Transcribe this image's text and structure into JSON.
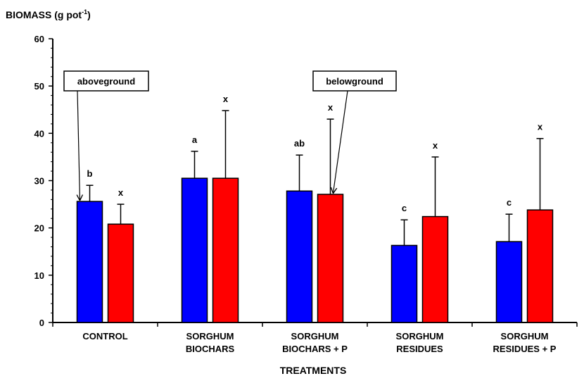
{
  "chart_data": {
    "type": "bar",
    "ylabel": "BIOMASS (g pot",
    "ylabel_sup": "-1",
    "ylabel_end": ")",
    "xlabel": "TREATMENTS",
    "ylim": [
      0,
      60
    ],
    "yticks": [
      0,
      10,
      20,
      30,
      40,
      50,
      60
    ],
    "grid": false,
    "categories": [
      [
        "CONTROL"
      ],
      [
        "SORGHUM",
        "BIOCHARS"
      ],
      [
        "SORGHUM",
        "BIOCHARS + P"
      ],
      [
        "SORGHUM",
        "RESIDUES"
      ],
      [
        "SORGHUM",
        "RESIDUES + P"
      ]
    ],
    "series": [
      {
        "name": "aboveground",
        "color": "#0000ff",
        "values": [
          25.6,
          30.5,
          27.8,
          16.3,
          17.1
        ],
        "error": [
          3.4,
          5.7,
          7.6,
          5.4,
          5.8
        ],
        "letters": [
          "b",
          "a",
          "ab",
          "c",
          "c"
        ]
      },
      {
        "name": "belowground",
        "color": "#ff0000",
        "values": [
          20.8,
          30.5,
          27.1,
          22.4,
          23.8
        ],
        "error": [
          4.2,
          14.3,
          15.9,
          12.6,
          15.1
        ],
        "letters": [
          "x",
          "x",
          "x",
          "x",
          "x"
        ]
      }
    ]
  }
}
